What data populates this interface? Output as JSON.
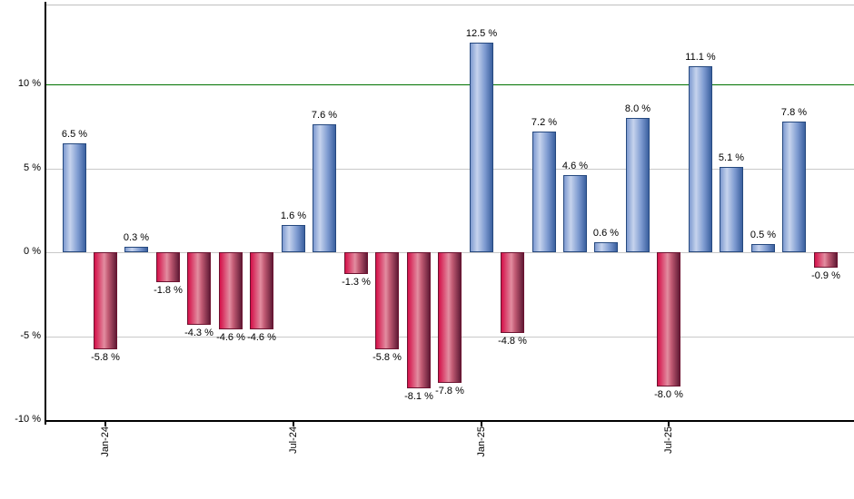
{
  "chart_data": {
    "type": "bar",
    "title": "",
    "description": "Monthly percent returns bar chart, blue bars positive, red bars negative, green reference line at 10 %",
    "values": [
      6.5,
      -5.8,
      0.3,
      -1.8,
      -4.3,
      -4.6,
      -4.6,
      1.6,
      7.6,
      -1.3,
      -5.8,
      -8.1,
      -7.8,
      12.5,
      -4.8,
      7.2,
      4.6,
      0.6,
      8.0,
      -8.0,
      11.1,
      5.1,
      0.5,
      7.8,
      -0.9
    ],
    "bar_labels": [
      "6.5 %",
      "-5.8 %",
      "0.3 %",
      "-1.8 %",
      "-4.3 %",
      "-4.6 %",
      "-4.6 %",
      "1.6 %",
      "7.6 %",
      "-1.3 %",
      "-5.8 %",
      "-8.1 %",
      "-7.8 %",
      "12.5 %",
      "-4.8 %",
      "7.2 %",
      "4.6 %",
      "0.6 %",
      "8.0 %",
      "-8.0 %",
      "11.1 %",
      "5.1 %",
      "0.5 %",
      "7.8 %",
      "-0.9 %"
    ],
    "x_tick_labels": [
      "Jan-24",
      "Jul-24",
      "Jan-25",
      "Jul-25"
    ],
    "x_tick_bar_indices": [
      1,
      7,
      13,
      19
    ],
    "y_ticks": [
      {
        "label": "10 %",
        "value": 10
      },
      {
        "label": "5 %",
        "value": 5
      },
      {
        "label": "0 %",
        "value": 0
      },
      {
        "label": "-5 %",
        "value": -5
      },
      {
        "label": "-10 %",
        "value": -10
      }
    ],
    "gridline_values": [
      5,
      0,
      -5
    ],
    "ylim": [
      -10,
      14.8
    ],
    "grid": true,
    "legend": null,
    "reference_line": {
      "value": 10,
      "color": "#007200"
    },
    "unit": "%",
    "colors": {
      "positive_gradient": [
        "#7e9ad0",
        "#c6d3ed",
        "#7f9cd1",
        "#3b609f"
      ],
      "negative_gradient": [
        "#d41049",
        "#e28da0",
        "#c25b74",
        "#611b36"
      ],
      "positive_border": "#26497f",
      "negative_border": "#6d1330",
      "gridline": "#c9c9c9",
      "axis": "#000000",
      "reference": "#007200",
      "label_text": "#000000",
      "top_border": "#bfbfbf"
    }
  }
}
